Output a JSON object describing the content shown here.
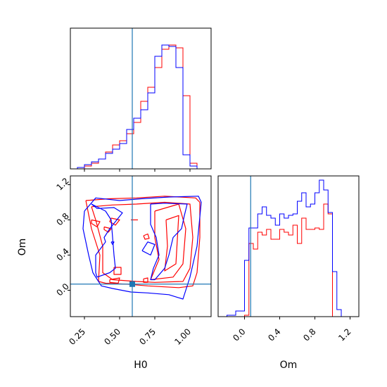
{
  "chart_data": {
    "type": "corner",
    "colors": {
      "series_a": "#ff0000",
      "series_b": "#0000ff",
      "truth": "#1f77b4"
    },
    "truth": {
      "H0": 0.59,
      "Om": 0.07
    },
    "panels": {
      "h0_hist": {
        "xlim": [
          0.15,
          1.15
        ],
        "bins": [
          0.15,
          0.2,
          0.25,
          0.3,
          0.35,
          0.4,
          0.45,
          0.5,
          0.55,
          0.6,
          0.65,
          0.7,
          0.75,
          0.8,
          0.85,
          0.9,
          0.95,
          1.0,
          1.05,
          1.1
        ],
        "series": [
          {
            "values": [
              0,
              0,
              0.02,
              0.04,
              0.07,
              0.12,
              0.17,
              0.2,
              0.25,
              0.33,
              0.48,
              0.58,
              0.72,
              0.85,
              0.88,
              0.86,
              0.52,
              0.04,
              0,
              0
            ]
          },
          {
            "values": [
              0,
              0.01,
              0.03,
              0.05,
              0.07,
              0.11,
              0.14,
              0.18,
              0.28,
              0.36,
              0.42,
              0.54,
              0.8,
              0.88,
              0.87,
              0.72,
              0.1,
              0.02,
              0,
              0
            ]
          }
        ]
      },
      "om_hist": {
        "xlim": [
          -0.3,
          1.3
        ],
        "ticks": [
          0.0,
          0.4,
          0.8,
          1.2
        ],
        "tick_labels": [
          "0.0",
          "0.4",
          "0.8",
          "1.2"
        ],
        "xlabel": "Om",
        "bins": [
          -0.3,
          -0.2,
          -0.1,
          0.0,
          0.05,
          0.1,
          0.15,
          0.2,
          0.25,
          0.3,
          0.35,
          0.4,
          0.45,
          0.5,
          0.55,
          0.6,
          0.65,
          0.7,
          0.75,
          0.8,
          0.85,
          0.9,
          0.95,
          1.0,
          1.05,
          1.1,
          1.2,
          1.3
        ],
        "series": [
          {
            "values": [
              0,
              0,
              0,
              0.01,
              0.52,
              0.48,
              0.6,
              0.58,
              0.62,
              0.55,
              0.55,
              0.62,
              0.6,
              0.58,
              0.65,
              0.52,
              0.7,
              0.62,
              0.62,
              0.63,
              0.62,
              0.8,
              0.73,
              0,
              0,
              0,
              0
            ]
          },
          {
            "values": [
              0,
              0.01,
              0.04,
              0.4,
              0.63,
              0.63,
              0.73,
              0.78,
              0.72,
              0.7,
              0.65,
              0.73,
              0.7,
              0.72,
              0.73,
              0.82,
              0.88,
              0.78,
              0.8,
              0.88,
              0.97,
              0.9,
              0.74,
              0.32,
              0.05,
              0,
              0
            ]
          }
        ]
      },
      "contour": {
        "xlim": [
          0.15,
          1.15
        ],
        "ylim": [
          -0.3,
          1.3
        ],
        "x_ticks": [
          0.25,
          0.5,
          0.75,
          1.0
        ],
        "x_tick_labels": [
          "0.25",
          "0.50",
          "0.75",
          "1.00"
        ],
        "y_ticks": [
          0.0,
          0.4,
          0.8,
          1.2
        ],
        "y_tick_labels": [
          "0.0",
          "0.4",
          "0.8",
          "1.2"
        ],
        "xlabel": "H0",
        "ylabel": "Om",
        "series": [
          {
            "contours": [
              [
                [
                  0.26,
                  1.02
                ],
                [
                  0.42,
                  1.04
                ],
                [
                  0.62,
                  1.05
                ],
                [
                  0.82,
                  1.07
                ],
                [
                  1.04,
                  1.05
                ],
                [
                  1.07,
                  1.0
                ],
                [
                  1.07,
                  0.6
                ],
                [
                  1.05,
                  0.2
                ],
                [
                  1.02,
                  0.05
                ],
                [
                  0.92,
                  0.03
                ],
                [
                  0.7,
                  0.05
                ],
                [
                  0.55,
                  0.07
                ],
                [
                  0.4,
                  0.08
                ],
                [
                  0.35,
                  0.1
                ],
                [
                  0.36,
                  0.4
                ],
                [
                  0.3,
                  0.7
                ],
                [
                  0.26,
                  1.02
                ]
              ],
              [
                [
                  0.3,
                  0.95
                ],
                [
                  0.45,
                  0.97
                ],
                [
                  0.62,
                  0.98
                ],
                [
                  0.82,
                  1.0
                ],
                [
                  1.0,
                  0.98
                ],
                [
                  1.02,
                  0.6
                ],
                [
                  1.0,
                  0.25
                ],
                [
                  0.95,
                  0.1
                ],
                [
                  0.75,
                  0.09
                ],
                [
                  0.62,
                  0.1
                ],
                [
                  0.45,
                  0.12
                ],
                [
                  0.38,
                  0.2
                ],
                [
                  0.38,
                  0.5
                ],
                [
                  0.33,
                  0.8
                ],
                [
                  0.3,
                  0.95
                ]
              ],
              [
                [
                  0.75,
                  0.9
                ],
                [
                  0.92,
                  0.98
                ],
                [
                  0.97,
                  0.7
                ],
                [
                  0.95,
                  0.3
                ],
                [
                  0.88,
                  0.15
                ],
                [
                  0.72,
                  0.12
                ],
                [
                  0.78,
                  0.35
                ],
                [
                  0.75,
                  0.6
                ],
                [
                  0.75,
                  0.9
                ]
              ],
              [
                [
                  0.83,
                  0.8
                ],
                [
                  0.92,
                  0.85
                ],
                [
                  0.9,
                  0.3
                ],
                [
                  0.82,
                  0.22
                ],
                [
                  0.84,
                  0.5
                ],
                [
                  0.83,
                  0.8
                ]
              ],
              [
                [
                  0.3,
                  0.8
                ],
                [
                  0.36,
                  0.78
                ],
                [
                  0.34,
                  0.72
                ],
                [
                  0.3,
                  0.76
                ],
                [
                  0.3,
                  0.8
                ]
              ],
              [
                [
                  0.44,
                  0.82
                ],
                [
                  0.5,
                  0.8
                ],
                [
                  0.47,
                  0.74
                ],
                [
                  0.43,
                  0.78
                ],
                [
                  0.44,
                  0.82
                ]
              ],
              [
                [
                  0.39,
                  0.72
                ],
                [
                  0.44,
                  0.7
                ],
                [
                  0.42,
                  0.66
                ],
                [
                  0.39,
                  0.69
                ],
                [
                  0.39,
                  0.72
                ]
              ],
              [
                [
                  0.43,
                  0.12
                ],
                [
                  0.5,
                  0.14
                ],
                [
                  0.49,
                  0.08
                ],
                [
                  0.43,
                  0.09
                ],
                [
                  0.43,
                  0.12
                ]
              ],
              [
                [
                  0.46,
                  0.26
                ],
                [
                  0.51,
                  0.26
                ],
                [
                  0.51,
                  0.18
                ],
                [
                  0.46,
                  0.18
                ],
                [
                  0.46,
                  0.26
                ]
              ],
              [
                [
                  0.67,
                  0.13
                ],
                [
                  0.7,
                  0.14
                ],
                [
                  0.7,
                  0.09
                ],
                [
                  0.67,
                  0.09
                ],
                [
                  0.67,
                  0.13
                ]
              ],
              [
                [
                  0.67,
                  0.62
                ],
                [
                  0.7,
                  0.64
                ],
                [
                  0.71,
                  0.59
                ],
                [
                  0.68,
                  0.58
                ],
                [
                  0.67,
                  0.62
                ]
              ],
              [
                [
                  0.58,
                  0.8
                ],
                [
                  0.63,
                  0.8
                ]
              ]
            ]
          },
          {
            "contours": [
              [
                [
                  0.25,
                  0.9
                ],
                [
                  0.33,
                  1.05
                ],
                [
                  0.5,
                  1.02
                ],
                [
                  0.65,
                  1.04
                ],
                [
                  0.85,
                  1.06
                ],
                [
                  1.06,
                  1.07
                ],
                [
                  1.08,
                  1.0
                ],
                [
                  1.05,
                  0.5
                ],
                [
                  1.0,
                  0.15
                ],
                [
                  0.95,
                  -0.1
                ],
                [
                  0.85,
                  -0.05
                ],
                [
                  0.7,
                  -0.03
                ],
                [
                  0.58,
                  -0.02
                ],
                [
                  0.45,
                  0.02
                ],
                [
                  0.37,
                  0.05
                ],
                [
                  0.31,
                  0.2
                ],
                [
                  0.28,
                  0.4
                ],
                [
                  0.24,
                  0.7
                ],
                [
                  0.25,
                  0.9
                ]
              ],
              [
                [
                  0.3,
                  0.98
                ],
                [
                  0.34,
                  0.93
                ],
                [
                  0.46,
                  0.94
                ],
                [
                  0.52,
                  0.88
                ],
                [
                  0.43,
                  0.7
                ],
                [
                  0.39,
                  0.6
                ],
                [
                  0.4,
                  0.55
                ],
                [
                  0.33,
                  0.4
                ],
                [
                  0.33,
                  0.2
                ],
                [
                  0.34,
                  0.15
                ],
                [
                  0.43,
                  0.2
                ],
                [
                  0.47,
                  0.25
                ],
                [
                  0.46,
                  0.4
                ],
                [
                  0.44,
                  0.8
                ],
                [
                  0.4,
                  0.9
                ],
                [
                  0.3,
                  0.98
                ]
              ],
              [
                [
                  0.72,
                  0.98
                ],
                [
                  0.82,
                  0.99
                ],
                [
                  0.98,
                  0.98
                ],
                [
                  0.96,
                  0.85
                ],
                [
                  0.94,
                  0.7
                ],
                [
                  0.88,
                  0.6
                ],
                [
                  0.85,
                  0.4
                ],
                [
                  0.82,
                  0.25
                ],
                [
                  0.75,
                  0.12
                ],
                [
                  0.72,
                  0.12
                ],
                [
                  0.74,
                  0.25
                ],
                [
                  0.78,
                  0.4
                ],
                [
                  0.76,
                  0.6
                ],
                [
                  0.72,
                  0.75
                ],
                [
                  0.72,
                  0.98
                ]
              ],
              [
                [
                  0.66,
                  0.45
                ],
                [
                  0.7,
                  0.55
                ],
                [
                  0.75,
                  0.52
                ],
                [
                  0.72,
                  0.4
                ],
                [
                  0.66,
                  0.45
                ]
              ],
              [
                [
                  0.44,
                  0.55
                ],
                [
                  0.46,
                  0.55
                ],
                [
                  0.45,
                  0.52
                ],
                [
                  0.44,
                  0.55
                ]
              ]
            ]
          }
        ]
      }
    }
  }
}
